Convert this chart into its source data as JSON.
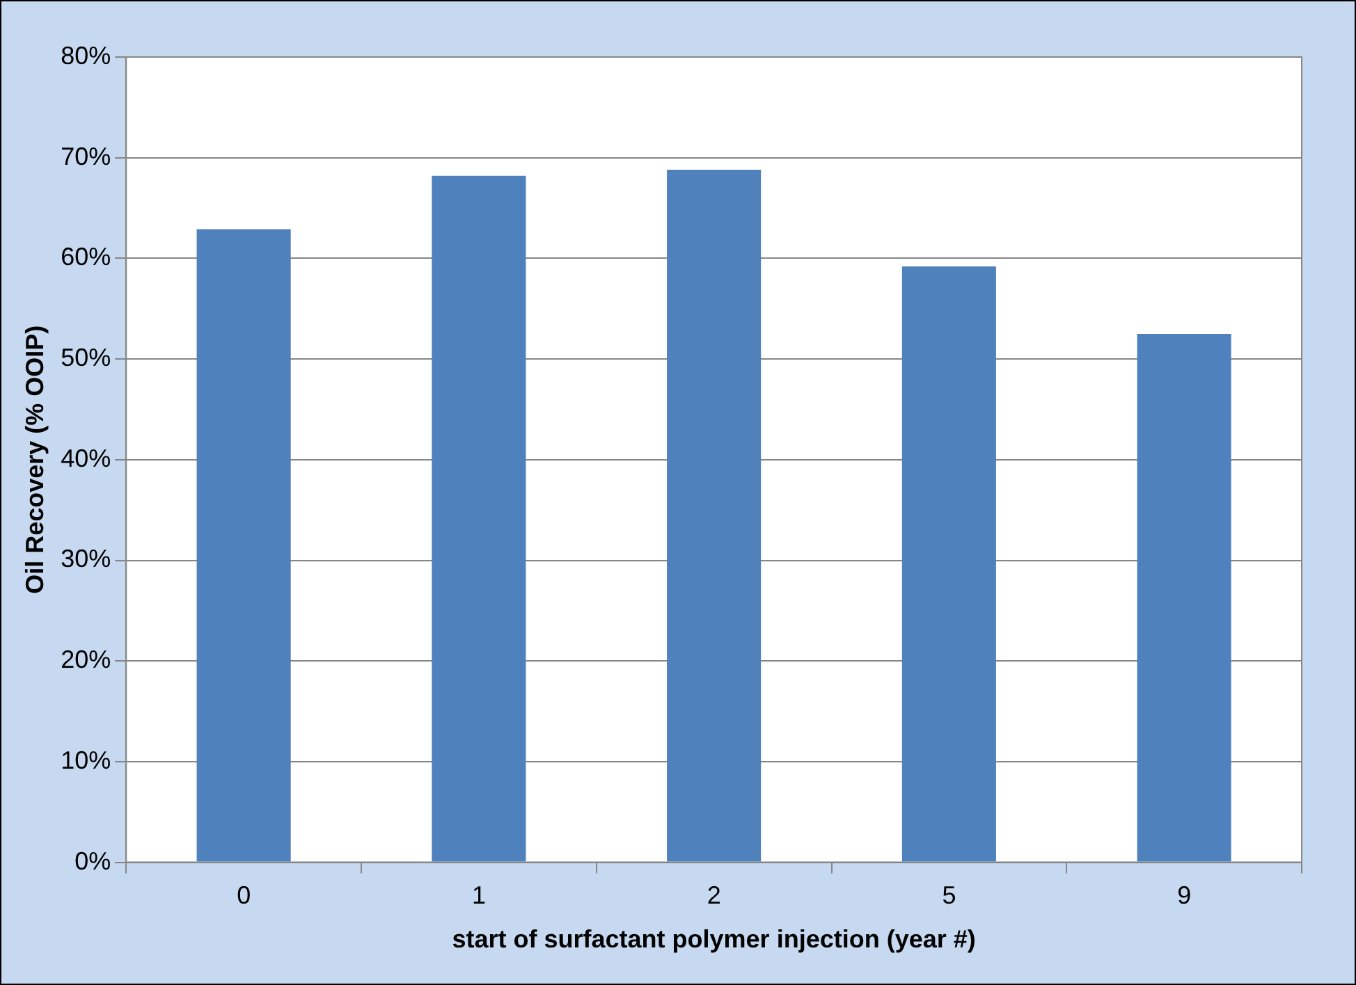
{
  "chart_data": {
    "type": "bar",
    "xlabel": "start of surfactant polymer injection (year #)",
    "ylabel": "Oil Recovery (% OOIP)",
    "categories": [
      "0",
      "1",
      "2",
      "5",
      "9"
    ],
    "values": [
      62.9,
      68.2,
      68.8,
      59.2,
      52.5
    ],
    "color": "#4f81bd",
    "ylim": [
      0,
      80
    ],
    "yticks": [
      {
        "value": 0,
        "label": "0%"
      },
      {
        "value": 10,
        "label": "10%"
      },
      {
        "value": 20,
        "label": "20%"
      },
      {
        "value": 30,
        "label": "30%"
      },
      {
        "value": 40,
        "label": "40%"
      },
      {
        "value": 50,
        "label": "50%"
      },
      {
        "value": 60,
        "label": "60%"
      },
      {
        "value": 70,
        "label": "70%"
      },
      {
        "value": 80,
        "label": "80%"
      }
    ],
    "grid": "y"
  }
}
